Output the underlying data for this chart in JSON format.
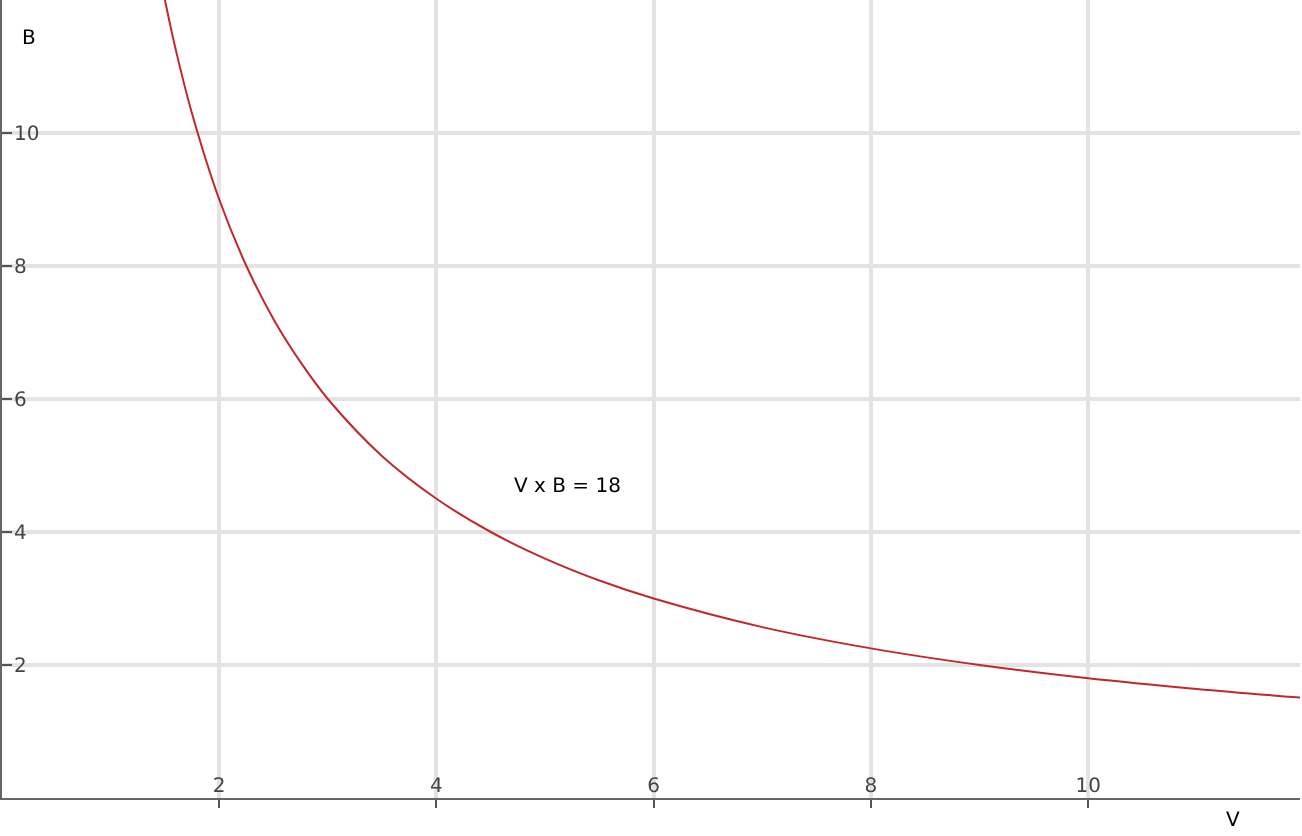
{
  "chart_data": {
    "type": "line",
    "xlabel": "V",
    "ylabel": "B",
    "x": [
      1.5,
      1.6,
      1.75,
      2,
      2.25,
      2.5,
      2.75,
      3,
      3.5,
      4,
      4.5,
      5,
      5.5,
      6,
      7,
      8,
      9,
      10,
      11,
      11.95
    ],
    "series": [
      {
        "color": "#c0282d",
        "values": [
          12,
          11.25,
          10.29,
          9,
          8,
          7.2,
          6.55,
          6,
          5.14,
          4.5,
          4,
          3.6,
          3.27,
          3,
          2.57,
          2.25,
          2,
          1.8,
          1.64,
          1.51
        ]
      }
    ],
    "annotations": [
      "V x B = 18"
    ],
    "xlim": [
      0,
      11.95
    ],
    "xticks": [
      2,
      4,
      6,
      8,
      10
    ],
    "ylim": [
      0,
      12
    ],
    "yticks": [
      2,
      4,
      6,
      8,
      10
    ],
    "grid": true,
    "legend": false,
    "marker": "none",
    "line_style": "solid"
  }
}
